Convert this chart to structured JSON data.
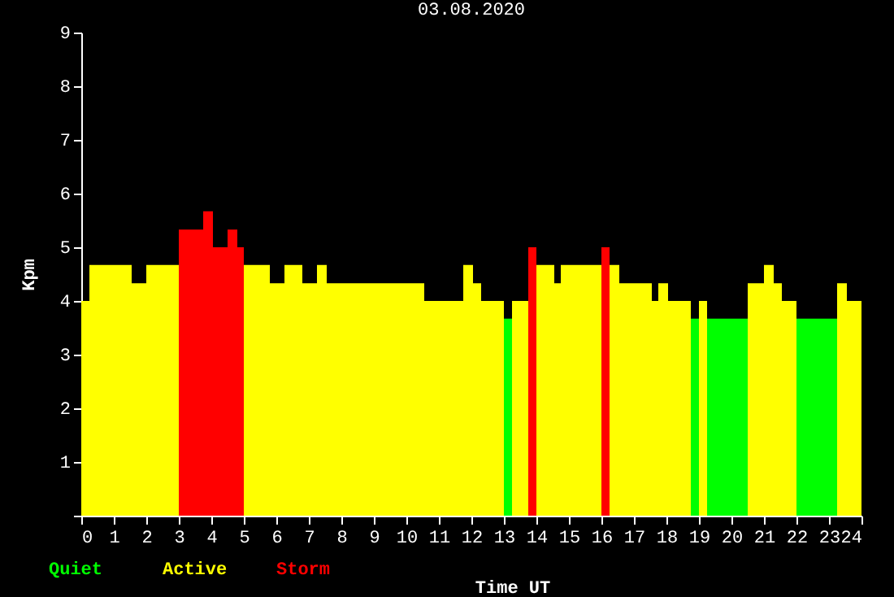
{
  "chart_data": {
    "type": "bar",
    "title": "03.08.2020",
    "xlabel": "Time UT",
    "ylabel": "Kpm",
    "x": [
      0.125,
      0.9,
      1.775,
      2.5,
      3.375,
      3.9,
      4.275,
      4.65,
      4.9,
      5.4,
      6.025,
      6.525,
      7.025,
      7.4,
      9.05,
      11.15,
      11.9,
      12.175,
      12.65,
      13.125,
      13.5,
      13.875,
      14.275,
      14.65,
      15.375,
      16.125,
      16.4,
      17.05,
      17.65,
      17.9,
      18.4,
      18.875,
      19.125,
      19.875,
      20.75,
      21.15,
      21.425,
      21.775,
      22.625,
      23.4,
      23.775
    ],
    "series": [
      {
        "name": "Quiet",
        "color": "#00ff00",
        "values": [
          null,
          null,
          null,
          null,
          null,
          null,
          null,
          null,
          null,
          null,
          null,
          null,
          null,
          null,
          null,
          null,
          null,
          null,
          null,
          3.67,
          null,
          null,
          null,
          null,
          null,
          null,
          null,
          null,
          null,
          null,
          null,
          3.67,
          null,
          3.67,
          null,
          null,
          null,
          null,
          3.67,
          null,
          null
        ]
      },
      {
        "name": "Active",
        "color": "#ffff00",
        "values": [
          4,
          4.67,
          4.33,
          4.67,
          null,
          null,
          null,
          null,
          null,
          4.67,
          4.33,
          4.67,
          4.33,
          4.67,
          4.33,
          4,
          4.67,
          4.33,
          4,
          null,
          4,
          null,
          4.67,
          4.33,
          4.67,
          null,
          4.67,
          4.33,
          4,
          4.33,
          4,
          null,
          4,
          null,
          4.33,
          4.67,
          4.33,
          4,
          null,
          4.33,
          4
        ]
      },
      {
        "name": "Storm",
        "color": "#ff0000",
        "values": [
          null,
          null,
          null,
          null,
          5.33,
          5.67,
          5,
          5.33,
          5,
          null,
          null,
          null,
          null,
          null,
          null,
          null,
          null,
          null,
          null,
          null,
          null,
          5,
          null,
          null,
          null,
          5,
          null,
          null,
          null,
          null,
          null,
          null,
          null,
          null,
          null,
          null,
          null,
          null,
          null,
          null,
          null
        ]
      }
    ],
    "xlim": [
      0,
      24
    ],
    "xticks": [
      0,
      1,
      2,
      3,
      4,
      5,
      6,
      7,
      8,
      9,
      10,
      11,
      12,
      13,
      14,
      15,
      16,
      17,
      18,
      19,
      20,
      21,
      22,
      23,
      24
    ],
    "ylim": [
      0,
      9
    ],
    "yticks": [
      {
        "value": 0,
        "label": null
      },
      1,
      2,
      3,
      4,
      5,
      6,
      7,
      8,
      9
    ],
    "grid": false
  }
}
